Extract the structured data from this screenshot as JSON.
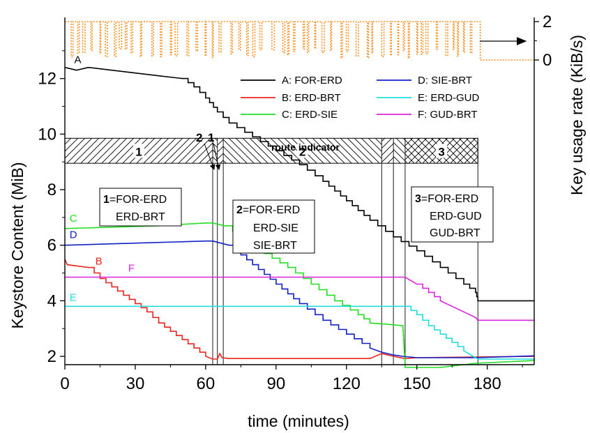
{
  "chart_data": {
    "type": "line",
    "xlabel": "time (minutes)",
    "ylabel": "Keystore Content (MiB)",
    "y2label": "Key usage rate (KiB/s)",
    "xlim": [
      0,
      200
    ],
    "ylim": [
      1.7,
      14.2
    ],
    "y2lim": [
      0,
      2
    ],
    "x_ticks": [
      "0",
      "30",
      "60",
      "90",
      "120",
      "150",
      "180"
    ],
    "y_ticks": [
      "2",
      "4",
      "6",
      "8",
      "10",
      "12"
    ],
    "y2_ticks": [
      "0",
      "2"
    ],
    "grid": false,
    "legend_position": "top-right",
    "series": [
      {
        "name": "A: FOR-ERD",
        "label": "A",
        "color": "#000000",
        "x": [
          0,
          5,
          10,
          20,
          30,
          40,
          50,
          55,
          60,
          65,
          70,
          80,
          90,
          100,
          110,
          120,
          130,
          140,
          150,
          160,
          170,
          175,
          176,
          200
        ],
        "y": [
          12.4,
          12.3,
          12.4,
          12.3,
          12.2,
          12.1,
          12.0,
          11.7,
          11.3,
          10.8,
          10.4,
          9.9,
          9.4,
          8.9,
          8.3,
          7.6,
          6.9,
          6.3,
          5.8,
          5.2,
          4.6,
          4.3,
          4.0,
          4.0
        ]
      },
      {
        "name": "B: ERD-BRT",
        "label": "B",
        "color": "#e8241d",
        "x": [
          0,
          1,
          10,
          15,
          20,
          25,
          30,
          35,
          40,
          45,
          50,
          55,
          60,
          63,
          65,
          66,
          67,
          70,
          100,
          130,
          135,
          140,
          145,
          150,
          200
        ],
        "y": [
          5.5,
          5.3,
          5.2,
          4.8,
          4.5,
          4.2,
          3.9,
          3.6,
          3.2,
          2.9,
          2.6,
          2.3,
          2.0,
          1.9,
          1.9,
          2.1,
          1.95,
          1.92,
          1.92,
          1.92,
          2.1,
          2.0,
          1.92,
          1.95,
          2.0
        ]
      },
      {
        "name": "C: ERD-SIE",
        "label": "C",
        "color": "#22dd22",
        "x": [
          0,
          20,
          40,
          60,
          63,
          68,
          75,
          85,
          95,
          105,
          115,
          125,
          130,
          138,
          144,
          145,
          160,
          175,
          200
        ],
        "y": [
          6.6,
          6.65,
          6.7,
          6.8,
          6.8,
          6.7,
          6.3,
          5.7,
          5.2,
          4.6,
          4.0,
          3.5,
          3.2,
          3.15,
          3.1,
          1.6,
          1.6,
          1.75,
          1.85
        ]
      },
      {
        "name": "D: SIE-BRT",
        "label": "D",
        "color": "#1020c8",
        "x": [
          0,
          20,
          40,
          60,
          63,
          70,
          80,
          90,
          100,
          110,
          120,
          130,
          135,
          140,
          144,
          150,
          175,
          200
        ],
        "y": [
          6.0,
          6.05,
          6.1,
          6.15,
          6.15,
          6.0,
          5.3,
          4.6,
          3.9,
          3.3,
          2.8,
          2.3,
          2.15,
          2.05,
          2.0,
          1.95,
          1.95,
          2.02
        ]
      },
      {
        "name": "E: ERD-GUD",
        "label": "E",
        "color": "#22dddd",
        "x": [
          0,
          145,
          150,
          155,
          160,
          165,
          170,
          175,
          176,
          200
        ],
        "y": [
          3.8,
          3.8,
          3.5,
          3.1,
          2.8,
          2.5,
          2.2,
          1.95,
          1.9,
          1.9
        ]
      },
      {
        "name": "F: GUD-BRT",
        "label": "F",
        "color": "#dd22dd",
        "x": [
          0,
          145,
          150,
          155,
          160,
          165,
          170,
          175,
          176,
          200
        ],
        "y": [
          4.85,
          4.85,
          4.6,
          4.3,
          4.0,
          3.8,
          3.6,
          3.4,
          3.3,
          3.3
        ]
      }
    ],
    "key_usage_rate": {
      "color": "#ff8c1a",
      "axis": "right",
      "x_start": 0,
      "x_end": 177,
      "high": 2,
      "low": 0.1,
      "idle_after": 177,
      "idle_value": 0
    },
    "route_segments": [
      {
        "label": "1",
        "from": 0,
        "to": 63,
        "hatch": "forward"
      },
      {
        "label": "2",
        "from": 63,
        "to": 65,
        "hatch": "back"
      },
      {
        "label": "1",
        "from": 65,
        "to": 67.5,
        "hatch": "forward"
      },
      {
        "label": "2",
        "from": 67.5,
        "to": 135,
        "hatch": "back"
      },
      {
        "label": "1",
        "from": 135,
        "to": 140,
        "hatch": "forward"
      },
      {
        "label": "2",
        "from": 140,
        "to": 145,
        "hatch": "back"
      },
      {
        "label": "3",
        "from": 145,
        "to": 176,
        "hatch": "cross"
      }
    ],
    "route_indicator": {
      "title": "route indicator",
      "y_bottom": 8.95,
      "y_top": 9.85,
      "narrow_labels": [
        "2",
        "1"
      ]
    },
    "route_boundaries": [
      63,
      65,
      67.5,
      135,
      140,
      145,
      176
    ],
    "route_boxes": [
      {
        "num": "1",
        "lines": [
          "=FOR-ERD",
          "ERD-BRT"
        ]
      },
      {
        "num": "2",
        "lines": [
          "=FOR-ERD",
          "ERD-SIE",
          "SIE-BRT"
        ]
      },
      {
        "num": "3",
        "lines": [
          "=FOR-ERD",
          "ERD-GUD",
          "GUD-BRT"
        ]
      }
    ]
  }
}
